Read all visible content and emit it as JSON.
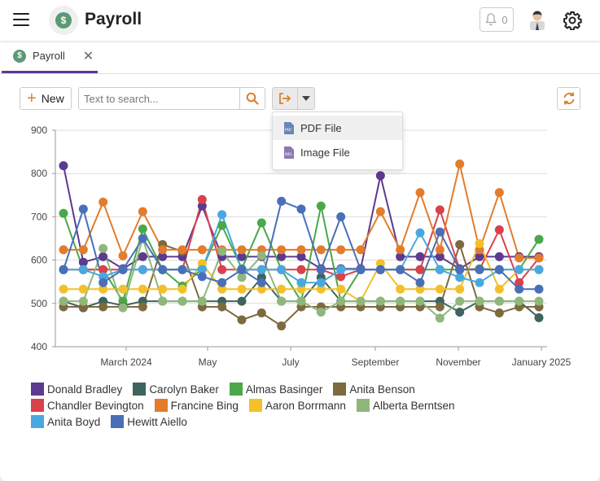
{
  "app": {
    "title": "Payroll",
    "logo_icon": "dollar-coin-icon",
    "notifications": "0"
  },
  "tabs": [
    {
      "label": "Payroll",
      "icon": "dollar-coin-icon"
    }
  ],
  "toolbar": {
    "new_label": "New",
    "search_placeholder": "Text to search...",
    "export_icon": "sign-out-icon",
    "refresh_icon": "refresh-icon"
  },
  "export_menu": [
    {
      "label": "PDF File",
      "icon": "pdf-file-icon"
    },
    {
      "label": "Image File",
      "icon": "image-file-icon"
    }
  ],
  "colors": {
    "accent": "#5b3a8c",
    "orange": "#d9822b"
  },
  "chart_data": {
    "type": "line",
    "x": [
      "2024-01",
      "2024-01",
      "2024-02",
      "2024-02",
      "2024-03",
      "2024-03",
      "2024-04",
      "2024-04",
      "2024-05",
      "2024-05",
      "2024-06",
      "2024-06",
      "2024-07",
      "2024-07",
      "2024-08",
      "2024-08",
      "2024-09",
      "2024-09",
      "2024-10",
      "2024-10",
      "2024-11",
      "2024-11",
      "2024-12",
      "2024-12",
      "2025-01"
    ],
    "x_ticks": [
      "March 2024",
      "May",
      "July",
      "September",
      "November",
      "January 2025"
    ],
    "ylim": [
      400,
      900
    ],
    "y_ticks": [
      400,
      500,
      600,
      700,
      800,
      900
    ],
    "grid": true,
    "legend_position": "bottom",
    "series": [
      {
        "name": "Donald Bradley",
        "color": "#5c3a8f",
        "values": [
          818,
          595,
          608,
          580,
          608,
          608,
          608,
          725,
          608,
          608,
          608,
          608,
          608,
          580,
          580,
          580,
          795,
          608,
          608,
          608,
          580,
          608,
          608,
          608,
          608
        ]
      },
      {
        "name": "Carolyn Baker",
        "color": "#3f635f",
        "values": [
          505,
          490,
          505,
          495,
          505,
          505,
          505,
          505,
          505,
          505,
          560,
          505,
          505,
          560,
          505,
          505,
          505,
          505,
          505,
          505,
          480,
          505,
          505,
          505,
          467
        ]
      },
      {
        "name": "Almas Basinger",
        "color": "#4aa84a",
        "values": [
          708,
          578,
          578,
          505,
          672,
          578,
          540,
          580,
          680,
          580,
          686,
          578,
          505,
          725,
          505,
          578,
          578,
          578,
          578,
          578,
          578,
          580,
          578,
          578,
          648
        ]
      },
      {
        "name": "Anita Benson",
        "color": "#7d6a3f",
        "values": [
          492,
          492,
          492,
          492,
          492,
          636,
          620,
          492,
          492,
          462,
          478,
          448,
          492,
          492,
          492,
          492,
          492,
          492,
          492,
          492,
          636,
          492,
          478,
          492,
          492
        ]
      },
      {
        "name": "Chandler Bevington",
        "color": "#d9414c",
        "values": [
          578,
          578,
          578,
          578,
          578,
          578,
          578,
          740,
          578,
          578,
          578,
          578,
          578,
          578,
          562,
          578,
          578,
          578,
          578,
          716,
          578,
          578,
          670,
          548,
          605
        ]
      },
      {
        "name": "Francine Bing",
        "color": "#e37c2c",
        "values": [
          624,
          624,
          734,
          610,
          712,
          624,
          624,
          624,
          624,
          624,
          624,
          624,
          624,
          624,
          624,
          624,
          712,
          624,
          756,
          624,
          822,
          624,
          756,
          605,
          605
        ]
      },
      {
        "name": "Aaron Borrmann",
        "color": "#f3c02a",
        "values": [
          533,
          533,
          533,
          533,
          533,
          533,
          533,
          592,
          533,
          533,
          533,
          533,
          533,
          533,
          533,
          505,
          592,
          533,
          533,
          533,
          533,
          638,
          533,
          578,
          578
        ]
      },
      {
        "name": "Alberta Berntsen",
        "color": "#8fb77c",
        "values": [
          505,
          505,
          627,
          490,
          650,
          505,
          505,
          505,
          620,
          560,
          610,
          505,
          505,
          480,
          505,
          505,
          505,
          505,
          505,
          466,
          505,
          505,
          505,
          505,
          505
        ]
      },
      {
        "name": "Anita Boyd",
        "color": "#49a8e0",
        "values": [
          578,
          578,
          562,
          578,
          578,
          578,
          578,
          578,
          705,
          578,
          578,
          578,
          548,
          548,
          578,
          578,
          578,
          578,
          663,
          578,
          560,
          548,
          578,
          578,
          578
        ]
      },
      {
        "name": "Hewitt Aiello",
        "color": "#4a6fb8",
        "values": [
          578,
          718,
          548,
          578,
          650,
          578,
          578,
          562,
          548,
          578,
          548,
          736,
          718,
          578,
          700,
          578,
          578,
          578,
          548,
          665,
          578,
          578,
          578,
          533,
          533
        ]
      }
    ]
  }
}
